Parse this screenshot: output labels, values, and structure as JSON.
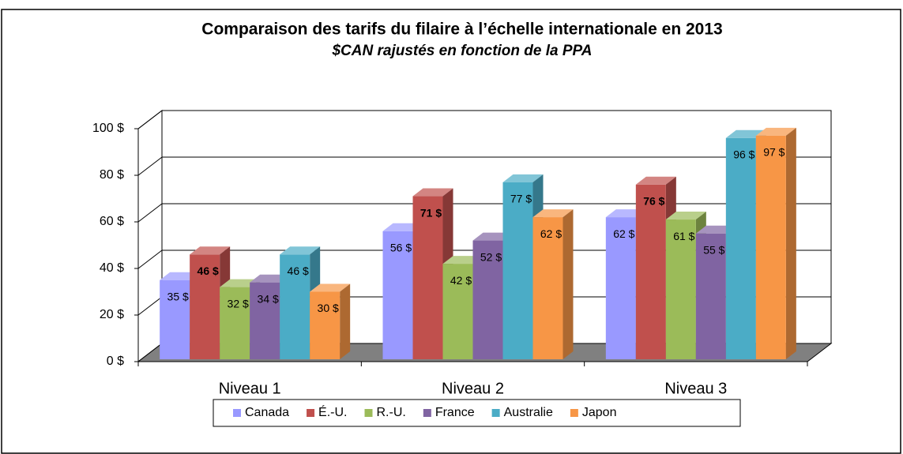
{
  "chart_data": {
    "type": "bar3d",
    "title": "Comparaison  des tarifs du filaire à l’échelle internationale  en 2013",
    "subtitle": "$CAN rajustés en fonction de la PPA",
    "categories": [
      "Niveau 1",
      "Niveau 2",
      "Niveau 3"
    ],
    "series": [
      {
        "name": "Canada",
        "color": "#9999ff",
        "values": [
          35,
          56,
          62
        ],
        "value_labels": [
          "35 $",
          "56 $",
          "62 $"
        ]
      },
      {
        "name": "É.-U.",
        "color": "#c0504d",
        "values": [
          46,
          71,
          76
        ],
        "value_labels": [
          "46 $",
          "71 $",
          "76 $"
        ],
        "bold_labels": true
      },
      {
        "name": "R.-U.",
        "color": "#9bbb59",
        "values": [
          32,
          42,
          61
        ],
        "value_labels": [
          "32 $",
          "42 $",
          "61 $"
        ]
      },
      {
        "name": "France",
        "color": "#8064a2",
        "values": [
          34,
          52,
          55
        ],
        "value_labels": [
          "34 $",
          "52 $",
          "55 $"
        ]
      },
      {
        "name": "Australie",
        "color": "#4bacc6",
        "values": [
          46,
          77,
          96
        ],
        "value_labels": [
          "46 $",
          "77 $",
          "96 $"
        ]
      },
      {
        "name": "Japon",
        "color": "#f79646",
        "values": [
          30,
          62,
          97
        ],
        "value_labels": [
          "30 $",
          "62 $",
          "97 $"
        ]
      }
    ],
    "ylim": [
      0,
      100
    ],
    "yticks": [
      {
        "value": 0,
        "label": "0 $"
      },
      {
        "value": 20,
        "label": "20 $"
      },
      {
        "value": 40,
        "label": "40 $"
      },
      {
        "value": 60,
        "label": "60 $"
      },
      {
        "value": 80,
        "label": "80 $"
      },
      {
        "value": 100,
        "label": "100 $"
      }
    ],
    "grid": true,
    "legend": "bottom"
  }
}
